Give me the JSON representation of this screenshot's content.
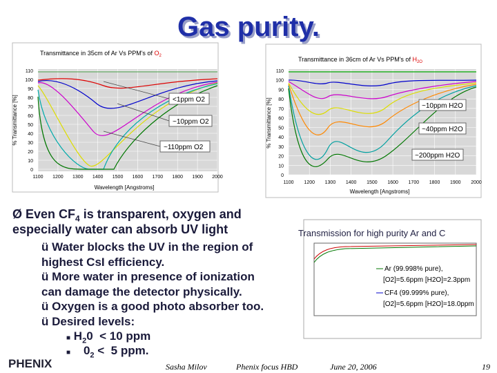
{
  "title": "Gas purity.",
  "plots": [
    {
      "title": "Transmittance in 35cm of Ar Vs PPM's of",
      "title_gas": "O",
      "title_gas_sub": "2",
      "y_label": "% Transmittance [%]",
      "x_label": "Wavelength [Angstroms]",
      "yticks": [
        "110",
        "100",
        "90",
        "80",
        "70",
        "60",
        "50",
        "40",
        "30",
        "20",
        "10",
        "0"
      ],
      "xticks": [
        "1100",
        "1200",
        "1300",
        "1400",
        "1500",
        "1600",
        "1700",
        "1800",
        "1900",
        "2000"
      ],
      "annotations": [
        "<1ppm O2",
        "~10ppm O2",
        "~110ppm O2"
      ]
    },
    {
      "title": "Transmittance in 36cm of Ar Vs PPM's of",
      "title_gas": "H",
      "title_gas_sub": "2O",
      "y_label": "% Transmittance [%]",
      "x_label": "Wavelength [Angstroms]",
      "yticks": [
        "110",
        "100",
        "90",
        "80",
        "70",
        "60",
        "50",
        "40",
        "30",
        "20",
        "10",
        "0"
      ],
      "xticks": [
        "1100",
        "1200",
        "1300",
        "1400",
        "1500",
        "1600",
        "1700",
        "1800",
        "1900",
        "2000"
      ],
      "annotations": [
        "~10ppm H2O",
        "~40ppm H2O",
        "~200ppm H2O"
      ]
    }
  ],
  "inset": {
    "title": "Transmission for high purity Ar and C",
    "legend": [
      "Ar (99.998% pure),",
      "[O2]=5.6ppm [H2O]=2.3ppm",
      "CF4 (99.999% pure),",
      "[O2]=5.6ppm [H2O]=18.0ppm"
    ]
  },
  "bullets": {
    "main": [
      "Even CF",
      "4",
      " is transparent, oxygen and",
      "especially water can absorb UV light"
    ],
    "checks": [
      "Water blocks the UV in the region of",
      "highest CsI efficiency.",
      "More water in presence of ionization",
      "can damage the detector physically.",
      "Oxygen is a good photo absorber too.",
      "Desired levels:"
    ],
    "levels": [
      [
        "H",
        "2",
        "0  < 10 ppm"
      ],
      [
        "0",
        "2",
        " <  5 ppm."
      ]
    ]
  },
  "footer": {
    "logo": "PHENIX",
    "author": "Sasha Milov",
    "event": "Phenix focus HBD",
    "date": "June 20, 2006",
    "page": "19"
  }
}
